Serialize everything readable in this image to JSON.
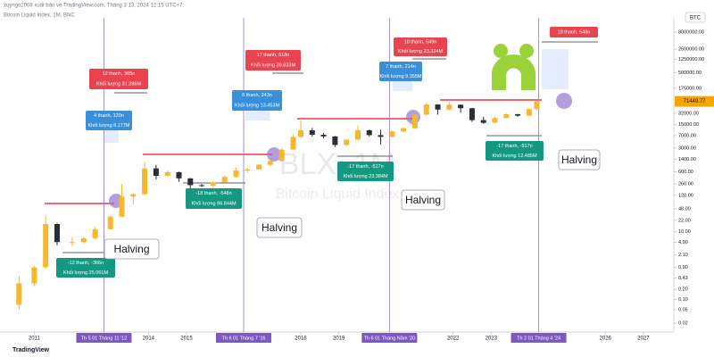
{
  "chart_data": {
    "type": "candlestick",
    "source": "xuyngo2008 xuất bản về TradingView.com, Tháng 3 13, 2024 12:15 UTC+7",
    "title": "Bitcoin Liquid Index, 1M, BNC",
    "watermark": "BLX, 1M",
    "watermark_subtitle": "Bitcoin Liquid Index",
    "currency": "BTC",
    "brand": "TradingView",
    "log_scale": true,
    "grid": false,
    "up_color": "#f5b82e",
    "down_color": "#2a2e39",
    "xlim": [
      2010.1,
      2027.8
    ],
    "xticks": [
      2011,
      2014,
      2015,
      2018,
      2019,
      2022,
      2023,
      2026,
      2027
    ],
    "ylim": [
      0.011,
      21000000
    ],
    "yticks": [
      {
        "value": 8000000,
        "label": "8000000.00"
      },
      {
        "value": 2500000,
        "label": "2500000.00"
      },
      {
        "value": 1250000,
        "label": "1250000.00"
      },
      {
        "value": 500000,
        "label": "500000.00"
      },
      {
        "value": 175000,
        "label": "175000.00"
      },
      {
        "value": 32000,
        "label": "32000.00"
      },
      {
        "value": 15000,
        "label": "15000.00"
      },
      {
        "value": 7000,
        "label": "7000.00"
      },
      {
        "value": 3000,
        "label": "3000.00"
      },
      {
        "value": 1400,
        "label": "1400.00"
      },
      {
        "value": 600,
        "label": "600.00"
      },
      {
        "value": 260,
        "label": "260.00"
      },
      {
        "value": 120,
        "label": "120.00"
      },
      {
        "value": 48,
        "label": "48.00"
      },
      {
        "value": 22,
        "label": "22.00"
      },
      {
        "value": 10,
        "label": "10.00"
      },
      {
        "value": 4.9,
        "label": "4.90"
      },
      {
        "value": 2.1,
        "label": "2.10"
      },
      {
        "value": 0.9,
        "label": "0.90"
      },
      {
        "value": 0.43,
        "label": "0.43"
      },
      {
        "value": 0.2,
        "label": "0.20"
      },
      {
        "value": 0.1,
        "label": "0.10"
      },
      {
        "value": 0.05,
        "label": "0.05"
      },
      {
        "value": 0.02,
        "label": "0.02"
      }
    ],
    "candles": {
      "x": [
        2010.6,
        2011.0,
        2011.3,
        2011.6,
        2012.0,
        2012.3,
        2012.6,
        2013.0,
        2013.3,
        2013.6,
        2013.9,
        2014.2,
        2014.5,
        2014.8,
        2015.1,
        2015.4,
        2015.7,
        2016.0,
        2016.3,
        2016.6,
        2016.9,
        2017.2,
        2017.5,
        2017.8,
        2018.0,
        2018.3,
        2018.6,
        2018.9,
        2019.2,
        2019.5,
        2019.8,
        2020.1,
        2020.4,
        2020.7,
        2021.0,
        2021.3,
        2021.6,
        2021.9,
        2022.2,
        2022.5,
        2022.8,
        2023.1,
        2023.4,
        2023.7,
        2024.0,
        2024.2
      ],
      "open": [
        0.07,
        0.3,
        0.9,
        17,
        5,
        5,
        6.5,
        12,
        28,
        110,
        130,
        750,
        450,
        580,
        380,
        240,
        230,
        290,
        420,
        650,
        700,
        960,
        1250,
        2700,
        6400,
        10000,
        7400,
        6600,
        3700,
        5300,
        10000,
        7200,
        6400,
        9200,
        11500,
        29000,
        58000,
        41000,
        57000,
        45000,
        20000,
        16600,
        23000,
        30000,
        27000,
        42500
      ],
      "high": [
        0.5,
        1.0,
        30,
        18,
        7,
        7,
        14,
        30,
        260,
        140,
        1150,
        950,
        650,
        600,
        390,
        260,
        320,
        460,
        780,
        780,
        1000,
        1300,
        3000,
        7500,
        19700,
        11700,
        8500,
        6800,
        5400,
        13800,
        10500,
        10500,
        10000,
        12400,
        29000,
        64800,
        59000,
        69000,
        58000,
        46000,
        25000,
        25000,
        31000,
        30500,
        44000,
        73000
      ],
      "low": [
        0.05,
        0.25,
        0.8,
        4,
        3.8,
        4.5,
        6,
        12,
        28,
        65,
        120,
        350,
        440,
        300,
        170,
        210,
        200,
        280,
        400,
        550,
        690,
        900,
        1200,
        2700,
        6000,
        6500,
        5800,
        3200,
        3400,
        5100,
        6500,
        3800,
        6200,
        9000,
        11000,
        28000,
        29000,
        40000,
        33000,
        17600,
        15500,
        16500,
        23000,
        24900,
        26500,
        38500
      ],
      "close": [
        0.3,
        0.9,
        17,
        5,
        5,
        6.5,
        12,
        28,
        110,
        130,
        750,
        450,
        580,
        380,
        240,
        230,
        290,
        420,
        650,
        700,
        960,
        1250,
        2700,
        6400,
        10000,
        7400,
        6600,
        3700,
        5300,
        10000,
        7200,
        6400,
        9200,
        11500,
        29000,
        58000,
        41000,
        57000,
        45000,
        20000,
        16600,
        23000,
        30000,
        27000,
        42500,
        71449.77
      ]
    },
    "halvings": {
      "x": [
        2012.83,
        2016.5,
        2020.33,
        2024.25
      ],
      "labels": [
        "Th 5 01 Tháng 11 '12",
        "Th 6 01 Tháng 7 '16",
        "Th 6 01 Tháng Năm '20",
        "Th 2 01 Tháng 4 '24"
      ],
      "color": "#9575cd",
      "callout": "Halving"
    },
    "annotations": [
      {
        "lines": [
          "12 thanh, 365n",
          "Khối lượng 31.286M"
        ],
        "color": "#e8434f"
      },
      {
        "lines": [
          "4 thanh, 120n",
          "Khối lượng 8.177M"
        ],
        "color": "#3a8fd9"
      },
      {
        "lines": [
          "17 thanh, 518n",
          "Khối lượng 39.633M"
        ],
        "color": "#e8434f"
      },
      {
        "lines": [
          "8 thanh, 243n",
          "Khối lượng 13.453M"
        ],
        "color": "#3a8fd9"
      },
      {
        "lines": [
          "18 thanh, 549n",
          "Khối lượng 23.324M"
        ],
        "color": "#e8434f"
      },
      {
        "lines": [
          "7 thanh, 214n",
          "Khối lượng 9.355M"
        ],
        "color": "#3a8fd9"
      },
      {
        "lines": [
          "-12 thanh, -366n",
          "Khối lượng 25.061M"
        ],
        "color": "#159882"
      },
      {
        "lines": [
          "-18 thanh, -548n",
          "Khối lượng 86.844M"
        ],
        "color": "#159882"
      },
      {
        "lines": [
          "-17 thanh, -517n",
          "Khối lượng 23.384M"
        ],
        "color": "#159882"
      },
      {
        "lines": [
          "-17 thanh, -517n",
          "Khối lượng 12.485M"
        ],
        "color": "#159882"
      },
      {
        "lines": [
          "18 thanh, 548n"
        ],
        "color": "#e8434f"
      }
    ]
  }
}
